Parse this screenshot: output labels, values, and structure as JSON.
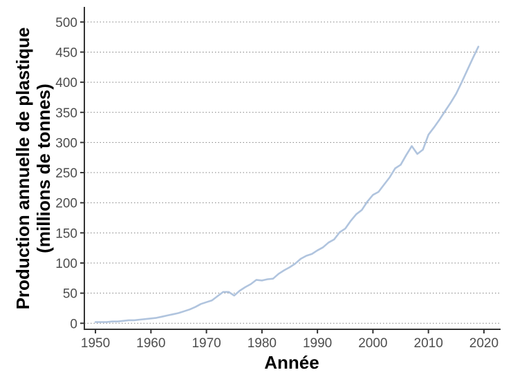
{
  "chart_data": {
    "type": "line",
    "xlabel": "Année",
    "ylabel_line1": "Production annuelle de plastique",
    "ylabel_line2": "(millions de tonnes)",
    "xlim": [
      1948,
      2023
    ],
    "ylim": [
      -10,
      525
    ],
    "x_ticks": [
      1950,
      1960,
      1970,
      1980,
      1990,
      2000,
      2010,
      2020
    ],
    "y_ticks": [
      0,
      50,
      100,
      150,
      200,
      250,
      300,
      350,
      400,
      450,
      500
    ],
    "grid": "horizontal-dotted",
    "line_color": "#b0c4de",
    "series": [
      {
        "x": [
          1950,
          1951,
          1952,
          1953,
          1954,
          1955,
          1956,
          1957,
          1958,
          1959,
          1960,
          1961,
          1962,
          1963,
          1964,
          1965,
          1966,
          1967,
          1968,
          1969,
          1970,
          1971,
          1972,
          1973,
          1974,
          1975,
          1976,
          1977,
          1978,
          1979,
          1980,
          1981,
          1982,
          1983,
          1984,
          1985,
          1986,
          1987,
          1988,
          1989,
          1990,
          1991,
          1992,
          1993,
          1994,
          1995,
          1996,
          1997,
          1998,
          1999,
          2000,
          2001,
          2002,
          2003,
          2004,
          2005,
          2006,
          2007,
          2008,
          2009,
          2010,
          2011,
          2012,
          2013,
          2014,
          2015,
          2016,
          2017,
          2018,
          2019
        ],
        "y": [
          2,
          2,
          2,
          3,
          3,
          4,
          5,
          5,
          6,
          7,
          8,
          9,
          11,
          13,
          15,
          17,
          20,
          23,
          27,
          32,
          35,
          38,
          45,
          52,
          52,
          46,
          54,
          60,
          65,
          72,
          71,
          73,
          74,
          82,
          88,
          93,
          99,
          107,
          112,
          115,
          121,
          126,
          134,
          139,
          151,
          157,
          170,
          181,
          188,
          202,
          213,
          218,
          230,
          242,
          257,
          263,
          279,
          294,
          281,
          288,
          313,
          325,
          338,
          352,
          366,
          381,
          400,
          420,
          440,
          459
        ]
      }
    ]
  }
}
